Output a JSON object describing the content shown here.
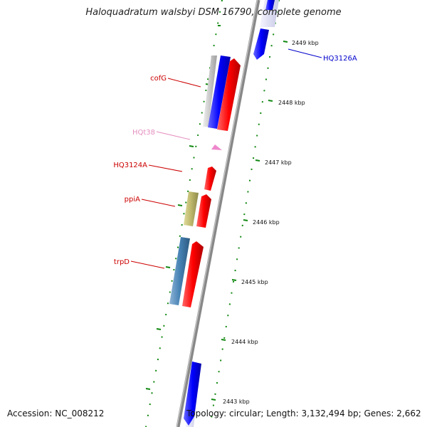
{
  "title": "Haloquadratum walsbyi DSM 16790, complete genome",
  "footer": {
    "accession": "Accession: NC_008212",
    "topology": "Topology: circular; Length: 3,132,494 bp; Genes: 2,662"
  },
  "ticks": [
    {
      "label": "2449 kbp"
    },
    {
      "label": "2448 kbp"
    },
    {
      "label": "2447 kbp"
    },
    {
      "label": "2446 kbp"
    },
    {
      "label": "2445 kbp"
    },
    {
      "label": "2444 kbp"
    },
    {
      "label": "2443 kbp"
    }
  ],
  "features": [
    {
      "name": "HQ3126A",
      "color": "#0000cc",
      "strand": "forward"
    },
    {
      "name": "cofG",
      "color": "#cc0000",
      "strand": "reverse"
    },
    {
      "name": "HQt38",
      "color": "#e58fbf",
      "strand": "reverse"
    },
    {
      "name": "HQ3124A",
      "color": "#cc0000",
      "strand": "reverse"
    },
    {
      "name": "ppiA",
      "color": "#cc0000",
      "strand": "reverse"
    },
    {
      "name": "trpD",
      "color": "#cc0000",
      "strand": "reverse"
    }
  ],
  "colors": {
    "backbone": "#888888",
    "forward_cds": "#0000ff",
    "reverse_cds": "#ff0000",
    "trna": "#ee88cc",
    "cog_green": "#118811",
    "cog_blue": "#4682b4",
    "cog_khaki": "#bdb76b"
  }
}
